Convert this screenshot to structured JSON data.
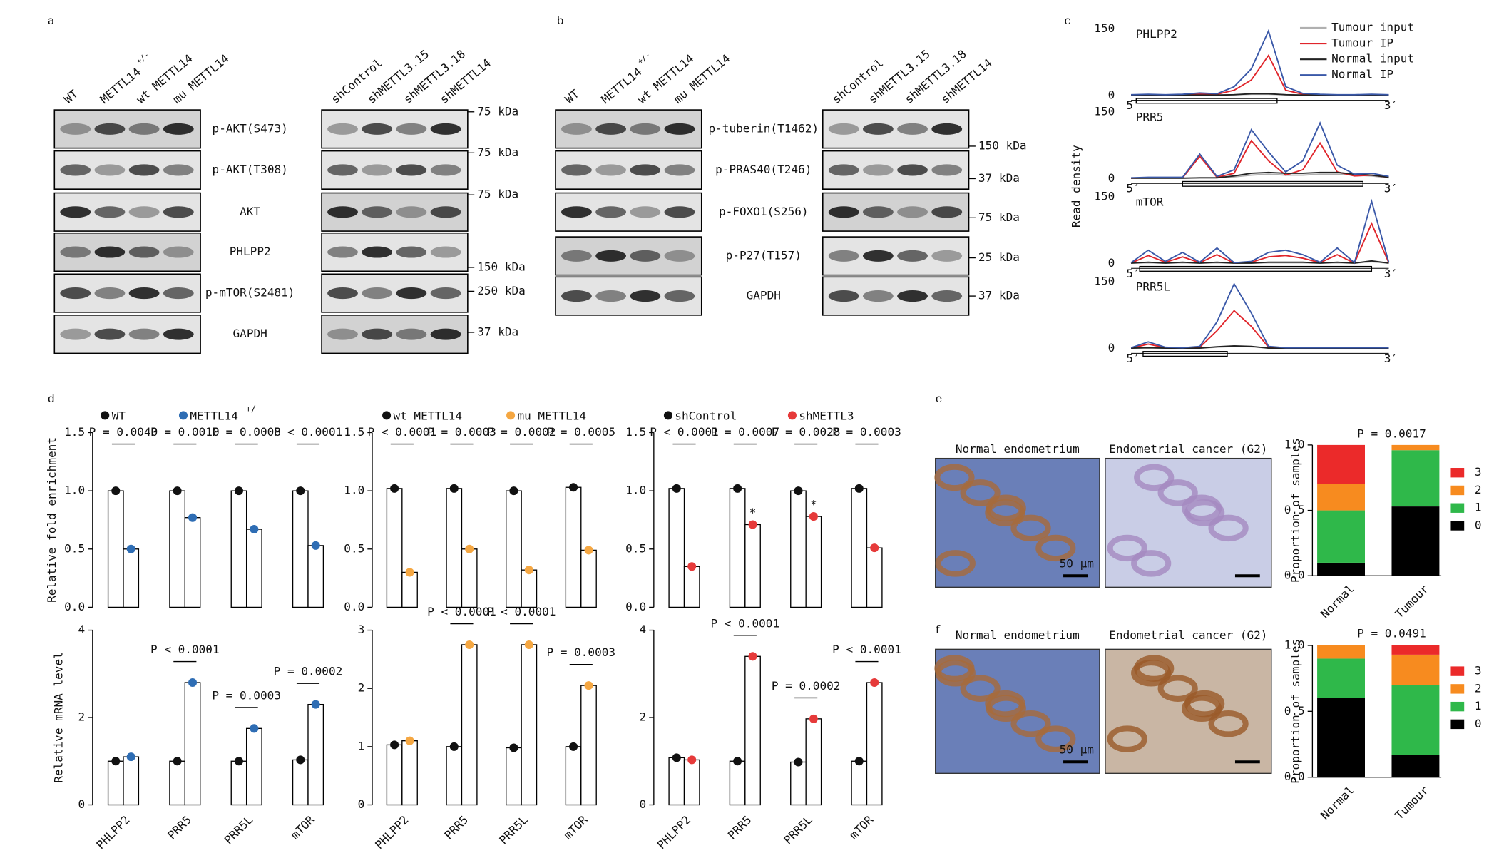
{
  "panel_labels": [
    "a",
    "b",
    "c",
    "d",
    "e",
    "f"
  ],
  "blots_a": {
    "lanes_left": [
      {
        "text": "WT"
      },
      {
        "text": "METTL14",
        "sup": "+/-"
      },
      {
        "text": "wt METTL14"
      },
      {
        "text": "mu METTL14"
      }
    ],
    "lanes_right": [
      {
        "text": "shControl"
      },
      {
        "text": "shMETTL3.15"
      },
      {
        "text": "shMETTL3.18"
      },
      {
        "text": "shMETTL14"
      }
    ],
    "rows": [
      "p-AKT(S473)",
      "p-AKT(T308)",
      "AKT",
      "PHLPP2",
      "p-mTOR(S2481)",
      "GAPDH"
    ],
    "kda": [
      "75 kDa",
      "75 kDa",
      "75 kDa",
      "150 kDa",
      "250 kDa",
      "37 kDa"
    ]
  },
  "blots_b": {
    "lanes_left": [
      {
        "text": "WT"
      },
      {
        "text": "METTL14",
        "sup": "+/-"
      },
      {
        "text": "wt METTL14"
      },
      {
        "text": "mu METTL14"
      }
    ],
    "lanes_right": [
      {
        "text": "shControl"
      },
      {
        "text": "shMETTL3.15"
      },
      {
        "text": "shMETTL3.18"
      },
      {
        "text": "shMETTL14"
      }
    ],
    "rows": [
      "p-tuberin(T1462)",
      "p-PRAS40(T246)",
      "p-FOXO1(S256)",
      "p-P27(T157)",
      "GAPDH"
    ],
    "kda": [
      "150 kDa",
      "37 kDa",
      "75 kDa",
      "25 kDa",
      "37 kDa"
    ]
  },
  "histology": {
    "e": {
      "captions": [
        "Normal endometrium",
        "Endometrial cancer (G2)"
      ],
      "scale_bar": "50 μm"
    },
    "f": {
      "captions": [
        "Normal endometrium",
        "Endometrial cancer (G2)"
      ],
      "scale_bar": "50 μm"
    }
  },
  "chart_data": [
    {
      "type": "line",
      "title": "PHLPP2",
      "ylabel": "Read density",
      "x": [
        0,
        1,
        2,
        3,
        4,
        5,
        6,
        7,
        8,
        9,
        10,
        11,
        12,
        13,
        14,
        15
      ],
      "xlim": [
        0,
        15
      ],
      "xticks": [
        {
          "value": 0,
          "label": "5′"
        },
        {
          "value": 15,
          "label": "3′"
        }
      ],
      "ylim": [
        0,
        150
      ],
      "yticks": [
        0,
        150
      ],
      "region": [
        0.3,
        8.5
      ],
      "series": [
        {
          "name": "Tumour input",
          "color": "#b0b0b0",
          "values": [
            1,
            1,
            1,
            1,
            1,
            1,
            2,
            3,
            3,
            2,
            1,
            1,
            1,
            1,
            1,
            1
          ]
        },
        {
          "name": "Tumour IP",
          "color": "#e0252b",
          "values": [
            1,
            2,
            1,
            2,
            4,
            3,
            12,
            35,
            90,
            12,
            3,
            2,
            1,
            1,
            2,
            1
          ]
        },
        {
          "name": "Normal input",
          "color": "#222222",
          "values": [
            1,
            1,
            1,
            1,
            1,
            1,
            2,
            4,
            4,
            2,
            1,
            1,
            1,
            1,
            1,
            1
          ]
        },
        {
          "name": "Normal IP",
          "color": "#3a58a8",
          "values": [
            2,
            3,
            2,
            3,
            6,
            4,
            20,
            60,
            145,
            20,
            5,
            3,
            2,
            2,
            3,
            2
          ]
        }
      ]
    },
    {
      "type": "line",
      "title": "PRR5",
      "x": [
        0,
        1,
        2,
        3,
        4,
        5,
        6,
        7,
        8,
        9,
        10,
        11,
        12,
        13,
        14,
        15
      ],
      "xlim": [
        0,
        15
      ],
      "xticks": [
        {
          "value": 0,
          "label": "5′"
        },
        {
          "value": 15,
          "label": "3′"
        }
      ],
      "ylim": [
        0,
        150
      ],
      "yticks": [
        0,
        150
      ],
      "region": [
        3,
        13.5
      ],
      "series": [
        {
          "color": "#b0b0b0",
          "values": [
            1,
            1,
            1,
            1,
            2,
            2,
            4,
            8,
            10,
            8,
            8,
            10,
            10,
            8,
            6,
            2
          ]
        },
        {
          "color": "#e0252b",
          "values": [
            1,
            2,
            2,
            2,
            50,
            3,
            12,
            85,
            40,
            8,
            20,
            80,
            15,
            6,
            8,
            3
          ]
        },
        {
          "color": "#222222",
          "values": [
            1,
            1,
            1,
            1,
            2,
            2,
            6,
            12,
            14,
            12,
            12,
            14,
            14,
            10,
            8,
            3
          ]
        },
        {
          "color": "#3a58a8",
          "values": [
            2,
            3,
            3,
            3,
            55,
            5,
            20,
            110,
            60,
            15,
            40,
            125,
            30,
            10,
            12,
            5
          ]
        }
      ]
    },
    {
      "type": "line",
      "title": "mTOR",
      "x": [
        0,
        1,
        2,
        3,
        4,
        5,
        6,
        7,
        8,
        9,
        10,
        11,
        12,
        13,
        14,
        15
      ],
      "xlim": [
        0,
        15
      ],
      "xticks": [
        {
          "value": 0,
          "label": "5′"
        },
        {
          "value": 15,
          "label": "3′"
        }
      ],
      "ylim": [
        0,
        150
      ],
      "yticks": [
        0,
        150
      ],
      "region": [
        0.5,
        14
      ],
      "series": [
        {
          "color": "#b0b0b0",
          "values": [
            1,
            2,
            1,
            2,
            1,
            2,
            1,
            1,
            2,
            2,
            2,
            1,
            2,
            1,
            4,
            1
          ]
        },
        {
          "color": "#e0252b",
          "values": [
            1,
            18,
            3,
            15,
            2,
            20,
            1,
            3,
            15,
            18,
            12,
            2,
            20,
            1,
            90,
            2
          ]
        },
        {
          "color": "#222222",
          "values": [
            1,
            3,
            1,
            3,
            1,
            3,
            1,
            1,
            3,
            3,
            3,
            1,
            3,
            1,
            6,
            1
          ]
        },
        {
          "color": "#3a58a8",
          "values": [
            2,
            30,
            5,
            25,
            3,
            35,
            2,
            5,
            25,
            30,
            20,
            3,
            35,
            2,
            140,
            3
          ]
        }
      ]
    },
    {
      "type": "line",
      "title": "PRR5L",
      "x": [
        0,
        1,
        2,
        3,
        4,
        5,
        6,
        7,
        8,
        9,
        10,
        11,
        12,
        13,
        14,
        15
      ],
      "xlim": [
        0,
        15
      ],
      "xticks": [
        {
          "value": 0,
          "label": "5′"
        },
        {
          "value": 15,
          "label": "3′"
        }
      ],
      "ylim": [
        0,
        150
      ],
      "yticks": [
        0,
        150
      ],
      "region": [
        0.7,
        5.6
      ],
      "series": [
        {
          "color": "#b0b0b0",
          "values": [
            1,
            2,
            1,
            1,
            1,
            3,
            5,
            4,
            1,
            1,
            1,
            1,
            1,
            1,
            1,
            1
          ]
        },
        {
          "color": "#e0252b",
          "values": [
            1,
            10,
            2,
            1,
            3,
            40,
            85,
            50,
            3,
            1,
            1,
            1,
            1,
            1,
            1,
            1
          ]
        },
        {
          "color": "#222222",
          "values": [
            1,
            2,
            1,
            1,
            1,
            4,
            6,
            5,
            1,
            1,
            1,
            1,
            1,
            1,
            1,
            1
          ]
        },
        {
          "color": "#3a58a8",
          "values": [
            2,
            15,
            3,
            2,
            5,
            60,
            145,
            80,
            5,
            2,
            2,
            2,
            2,
            2,
            2,
            2
          ]
        }
      ]
    },
    {
      "type": "bar",
      "ylabel": "Relative fold enrichment",
      "ylim": [
        0,
        1.5
      ],
      "yticks": [
        {
          "value": 0,
          "label": "0.0"
        },
        0.5,
        {
          "value": 1,
          "label": "1.0"
        },
        1.5
      ],
      "series": [
        {
          "name": "WT",
          "color": "#111111",
          "values": [
            1.0,
            1.0,
            1.0,
            1.0
          ]
        },
        {
          "name": "METTL14",
          "name_sup": "+/-",
          "color": "#2e6db4",
          "values": [
            0.5,
            0.77,
            0.67,
            0.53
          ]
        }
      ],
      "annotations": [
        "P = 0.0040",
        "P = 0.0010",
        "P = 0.0008",
        "P < 0.0001"
      ]
    },
    {
      "type": "bar",
      "ylim": [
        0,
        1.5
      ],
      "yticks": [
        {
          "value": 0,
          "label": "0.0"
        },
        0.5,
        {
          "value": 1,
          "label": "1.0"
        },
        1.5
      ],
      "series": [
        {
          "name": "wt METTL14",
          "color": "#111111",
          "values": [
            1.02,
            1.02,
            1.0,
            1.03
          ]
        },
        {
          "name": "mu METTL14",
          "color": "#f5a742",
          "values": [
            0.3,
            0.5,
            0.32,
            0.49
          ]
        }
      ],
      "annotations": [
        "P < 0.0001",
        "P = 0.0003",
        "P = 0.0002",
        "P = 0.0005"
      ]
    },
    {
      "type": "bar",
      "ylim": [
        0,
        1.5
      ],
      "yticks": [
        {
          "value": 0,
          "label": "0.0"
        },
        0.5,
        {
          "value": 1,
          "label": "1.0"
        },
        1.5
      ],
      "series": [
        {
          "name": "shControl",
          "color": "#111111",
          "values": [
            1.02,
            1.02,
            1.0,
            1.02
          ]
        },
        {
          "name": "shMETTL3",
          "color": "#e63a3a",
          "values": [
            0.35,
            0.71,
            0.78,
            0.51
          ]
        }
      ],
      "annotations": [
        "P < 0.0001",
        "P = 0.0007",
        "P = 0.0028",
        "P = 0.0003"
      ],
      "stars": [
        null,
        "*",
        "*",
        null
      ]
    },
    {
      "type": "bar",
      "ylabel": "Relative mRNA level",
      "categories": [
        "PHLPP2",
        "PRR5",
        "PRR5L",
        "mTOR"
      ],
      "ylim": [
        0,
        4
      ],
      "yticks": [
        0,
        2,
        4
      ],
      "series": [
        {
          "color": "#111111",
          "values": [
            1.0,
            1.0,
            1.0,
            1.03
          ]
        },
        {
          "color": "#2e6db4",
          "values": [
            1.1,
            2.8,
            1.75,
            2.3
          ]
        }
      ],
      "annotations": [
        null,
        "P < 0.0001",
        "P = 0.0003",
        "P = 0.0002"
      ]
    },
    {
      "type": "bar",
      "categories": [
        "PHLPP2",
        "PRR5",
        "PRR5L",
        "mTOR"
      ],
      "ylim": [
        0,
        3
      ],
      "yticks": [
        0,
        1,
        2,
        3
      ],
      "series": [
        {
          "color": "#111111",
          "values": [
            1.03,
            1.0,
            0.98,
            1.0
          ]
        },
        {
          "color": "#f5a742",
          "values": [
            1.1,
            2.75,
            2.75,
            2.05
          ]
        }
      ],
      "annotations": [
        null,
        "P < 0.0001",
        "P < 0.0001",
        "P = 0.0003"
      ]
    },
    {
      "type": "bar",
      "categories": [
        "PHLPP2",
        "PRR5",
        "PRR5L",
        "mTOR"
      ],
      "ylim": [
        0,
        4
      ],
      "yticks": [
        0,
        2,
        4
      ],
      "series": [
        {
          "color": "#111111",
          "values": [
            1.08,
            1.0,
            0.98,
            1.0
          ]
        },
        {
          "color": "#e63a3a",
          "values": [
            1.03,
            3.4,
            1.97,
            2.8
          ]
        }
      ],
      "annotations": [
        null,
        "P < 0.0001",
        "P = 0.0002",
        "P < 0.0001"
      ]
    },
    {
      "type": "stacked_bar",
      "title": "P = 0.0017",
      "ylabel": "Proportion of samples",
      "categories": [
        "Normal",
        "Tumour"
      ],
      "ylim": [
        0,
        1
      ],
      "yticks": [
        {
          "value": 0,
          "label": "0.0"
        },
        0.5,
        {
          "value": 1,
          "label": "1.0"
        }
      ],
      "series": [
        {
          "name": "0",
          "color": "#000000",
          "values": [
            0.1,
            0.53
          ]
        },
        {
          "name": "1",
          "color": "#2fb84a",
          "values": [
            0.4,
            0.43
          ]
        },
        {
          "name": "2",
          "color": "#f78b1f",
          "values": [
            0.2,
            0.04
          ]
        },
        {
          "name": "3",
          "color": "#eb2a2a",
          "values": [
            0.3,
            0
          ]
        }
      ]
    },
    {
      "type": "stacked_bar",
      "title": "P = 0.0491",
      "ylabel": "Proportion of samples",
      "categories": [
        "Normal",
        "Tumour"
      ],
      "ylim": [
        0,
        1
      ],
      "yticks": [
        {
          "value": 0,
          "label": "0.0"
        },
        0.5,
        {
          "value": 1,
          "label": "1.0"
        }
      ],
      "series": [
        {
          "name": "0",
          "color": "#000000",
          "values": [
            0.6,
            0.17
          ]
        },
        {
          "name": "1",
          "color": "#2fb84a",
          "values": [
            0.3,
            0.53
          ]
        },
        {
          "name": "2",
          "color": "#f78b1f",
          "values": [
            0.1,
            0.23
          ]
        },
        {
          "name": "3",
          "color": "#eb2a2a",
          "values": [
            0,
            0.07
          ]
        }
      ]
    }
  ]
}
